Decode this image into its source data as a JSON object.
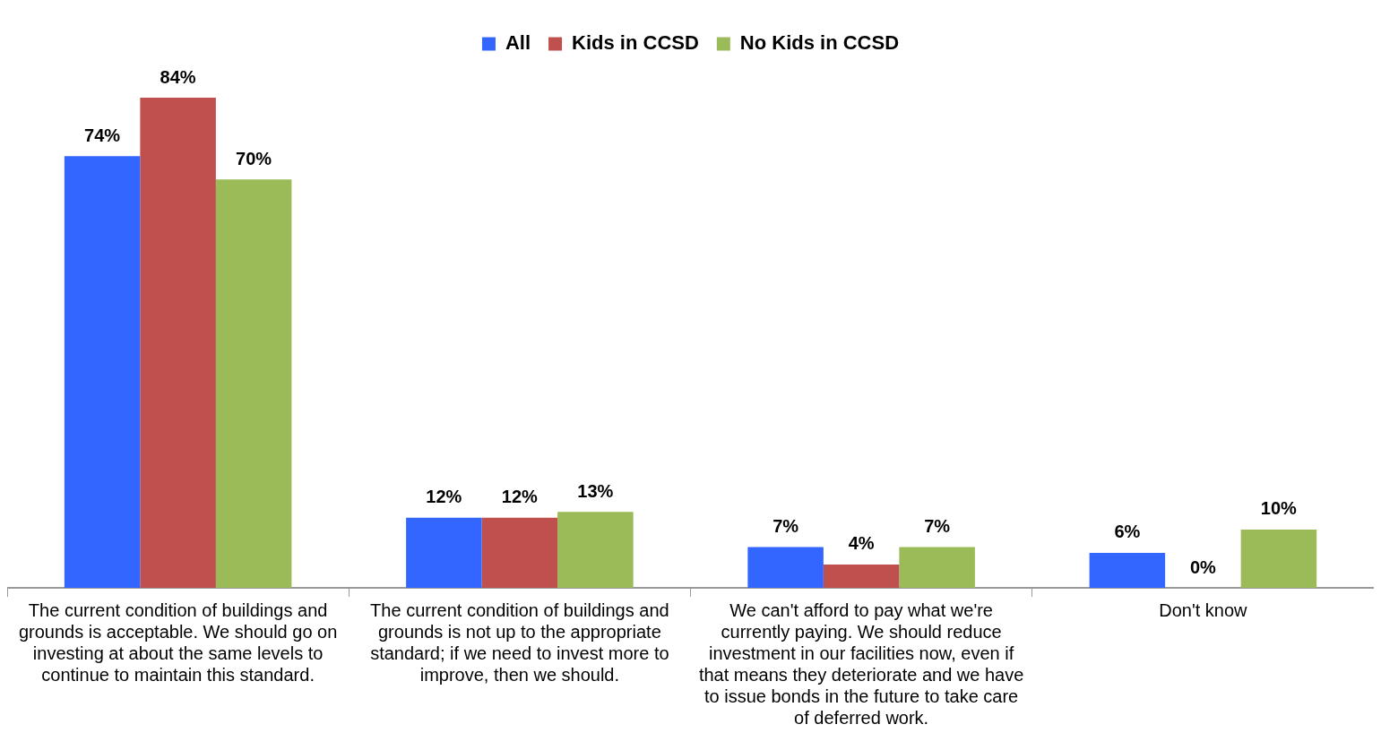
{
  "chart_data": {
    "type": "bar",
    "categories": [
      "The current condition of buildings and grounds is acceptable. We should go on investing at about the same levels to continue to maintain this standard.",
      "The current condition of buildings and grounds is not up to the appropriate standard; if we need to invest more to improve, then we should.",
      "We can't afford to pay what we're currently paying. We should reduce investment in our facilities now, even if that means they deteriorate and we have to issue bonds in the future to take care of deferred work.",
      "Don't know"
    ],
    "series": [
      {
        "name": "All",
        "color": "#3366ff",
        "values": [
          74,
          12,
          7,
          6
        ],
        "value_labels": [
          "74%",
          "12%",
          "7%",
          "6%"
        ]
      },
      {
        "name": "Kids in CCSD",
        "color": "#c0504d",
        "values": [
          84,
          12,
          4,
          0
        ],
        "value_labels": [
          "84%",
          "12%",
          "4%",
          "0%"
        ]
      },
      {
        "name": "No Kids in CCSD",
        "color": "#9bbb59",
        "values": [
          70,
          13,
          7,
          10
        ],
        "value_labels": [
          "70%",
          "13%",
          "7%",
          "10%"
        ]
      }
    ],
    "legend": "top",
    "tick_labels": "x"
  }
}
